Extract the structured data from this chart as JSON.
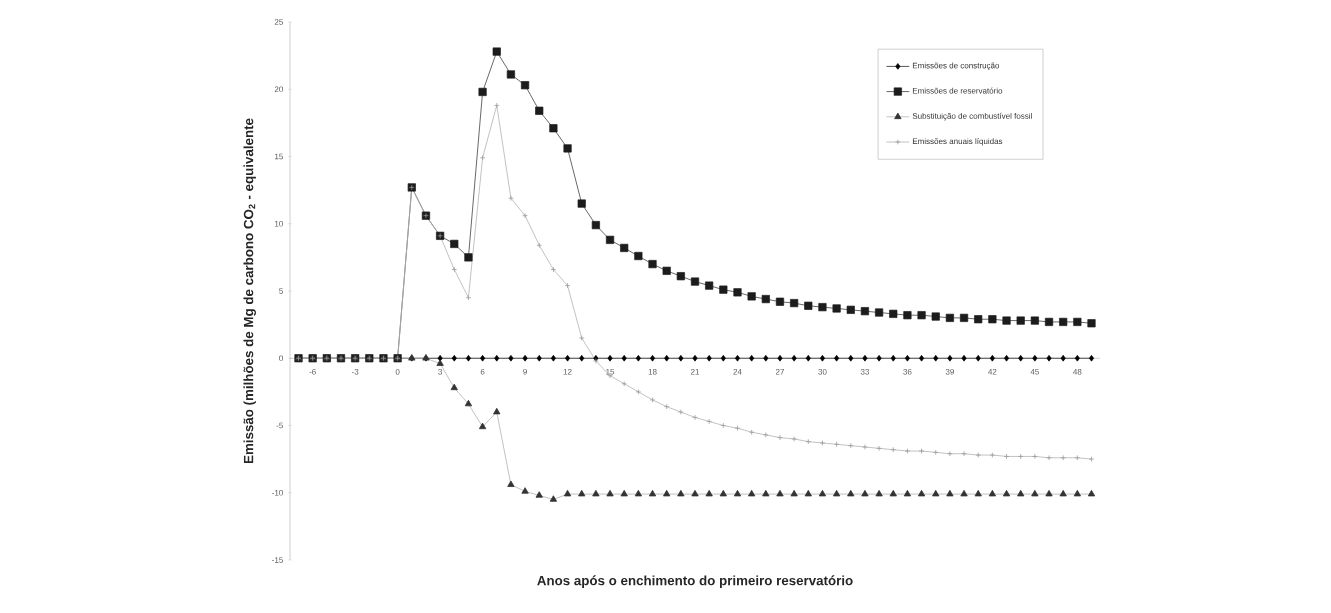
{
  "chart_data": {
    "type": "line",
    "xlabel": "Anos após o enchimento do primeiro reservatório",
    "ylabel": "Emissão (milhões de Mg de carbono CO$_{2}$ - equivalente",
    "x": [
      -7,
      -6,
      -5,
      -4,
      -3,
      -2,
      -1,
      0,
      1,
      2,
      3,
      4,
      5,
      6,
      7,
      8,
      9,
      10,
      11,
      12,
      13,
      14,
      15,
      16,
      17,
      18,
      19,
      20,
      21,
      22,
      23,
      24,
      25,
      26,
      27,
      28,
      29,
      30,
      31,
      32,
      33,
      34,
      35,
      36,
      37,
      38,
      39,
      40,
      41,
      42,
      43,
      44,
      45,
      46,
      47,
      48,
      49
    ],
    "series": [
      {
        "name": "Emissões de construção",
        "color": "#000000",
        "marker": "diamond",
        "values": [
          0,
          0,
          0,
          0,
          0,
          0,
          0,
          0,
          0,
          0,
          0,
          0,
          0,
          0,
          0,
          0,
          0,
          0,
          0,
          0,
          0,
          0,
          0,
          0,
          0,
          0,
          0,
          0,
          0,
          0,
          0,
          0,
          0,
          0,
          0,
          0,
          0,
          0,
          0,
          0,
          0,
          0,
          0,
          0,
          0,
          0,
          0,
          0,
          0,
          0,
          0,
          0,
          0,
          0,
          0,
          0,
          0
        ]
      },
      {
        "name": "Emissões de reservatório",
        "color": "#1c1c1c",
        "marker": "square",
        "values": [
          0,
          0,
          0,
          0,
          0,
          0,
          0,
          0,
          12.7,
          10.6,
          9.1,
          8.5,
          7.5,
          19.8,
          22.8,
          21.1,
          20.3,
          18.4,
          17.1,
          15.6,
          11.5,
          9.9,
          8.8,
          8.2,
          7.6,
          7.0,
          6.5,
          6.1,
          5.7,
          5.4,
          5.1,
          4.9,
          4.6,
          4.4,
          4.2,
          4.1,
          3.9,
          3.8,
          3.7,
          3.6,
          3.5,
          3.4,
          3.3,
          3.2,
          3.2,
          3.1,
          3.0,
          3.0,
          2.9,
          2.9,
          2.8,
          2.8,
          2.8,
          2.7,
          2.7,
          2.7,
          2.6
        ]
      },
      {
        "name": "Substituição de combustível fossil",
        "color": "#333333",
        "marker": "triangle",
        "values": [
          0,
          0,
          0,
          0,
          0,
          0,
          0,
          0,
          0,
          0,
          -0.4,
          -2.2,
          -3.4,
          -5.1,
          -4.0,
          -9.4,
          -9.9,
          -10.2,
          -10.5,
          -10.1,
          -10.1,
          -10.1,
          -10.1,
          -10.1,
          -10.1,
          -10.1,
          -10.1,
          -10.1,
          -10.1,
          -10.1,
          -10.1,
          -10.1,
          -10.1,
          -10.1,
          -10.1,
          -10.1,
          -10.1,
          -10.1,
          -10.1,
          -10.1,
          -10.1,
          -10.1,
          -10.1,
          -10.1,
          -10.1,
          -10.1,
          -10.1,
          -10.1,
          -10.1,
          -10.1,
          -10.1,
          -10.1,
          -10.1,
          -10.1,
          -10.1,
          -10.1,
          -10.1
        ]
      },
      {
        "name": "Emissões anuais líquidas",
        "color": "#9a9a9a",
        "marker": "cross",
        "values": [
          0,
          0,
          0,
          0,
          0,
          0,
          0,
          0,
          12.7,
          10.6,
          9.1,
          6.6,
          4.5,
          14.9,
          18.8,
          11.9,
          10.6,
          8.4,
          6.6,
          5.4,
          1.5,
          -0.2,
          -1.3,
          -1.9,
          -2.5,
          -3.1,
          -3.6,
          -4.0,
          -4.4,
          -4.7,
          -5.0,
          -5.2,
          -5.5,
          -5.7,
          -5.9,
          -6.0,
          -6.2,
          -6.3,
          -6.4,
          -6.5,
          -6.6,
          -6.7,
          -6.8,
          -6.9,
          -6.9,
          -7.0,
          -7.1,
          -7.1,
          -7.2,
          -7.2,
          -7.3,
          -7.3,
          -7.3,
          -7.4,
          -7.4,
          -7.4,
          -7.5
        ]
      }
    ],
    "xlim": [
      -7.6,
      49.6
    ],
    "xticks": [
      -6,
      -3,
      0,
      3,
      6,
      9,
      12,
      15,
      18,
      21,
      24,
      27,
      30,
      33,
      36,
      39,
      42,
      45,
      48
    ],
    "ylim": [
      -15,
      25
    ],
    "yticks": [
      -15,
      -10,
      -5,
      0,
      5,
      10,
      15,
      20,
      25
    ],
    "grid": false,
    "legend": "top right",
    "line_style": "solid"
  }
}
